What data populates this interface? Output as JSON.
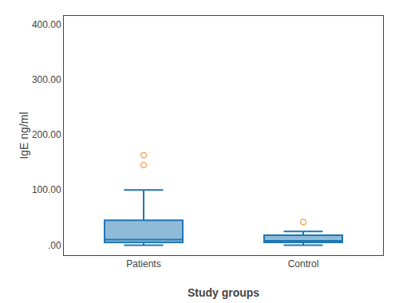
{
  "chart_data": {
    "type": "box",
    "xlabel": "Study groups",
    "ylabel": "IgE ng/ml",
    "categories": [
      "Patients",
      "Control"
    ],
    "values": [
      {
        "q1": 5,
        "median": 10,
        "q3": 45,
        "whisker_low": 0,
        "whisker_high": 100,
        "outliers": [
          145,
          163
        ]
      },
      {
        "q1": 5,
        "median": 8,
        "q3": 18,
        "whisker_low": 0,
        "whisker_high": 25,
        "outliers": [
          42
        ]
      }
    ],
    "ylim": [
      -18,
      415
    ],
    "yticks": [
      {
        "value": 0,
        "label": ".00"
      },
      {
        "value": 100,
        "label": "100.00"
      },
      {
        "value": 200,
        "label": "200.00"
      },
      {
        "value": 300,
        "label": "300.00"
      },
      {
        "value": 400,
        "label": "400.00"
      }
    ],
    "grid": false
  }
}
